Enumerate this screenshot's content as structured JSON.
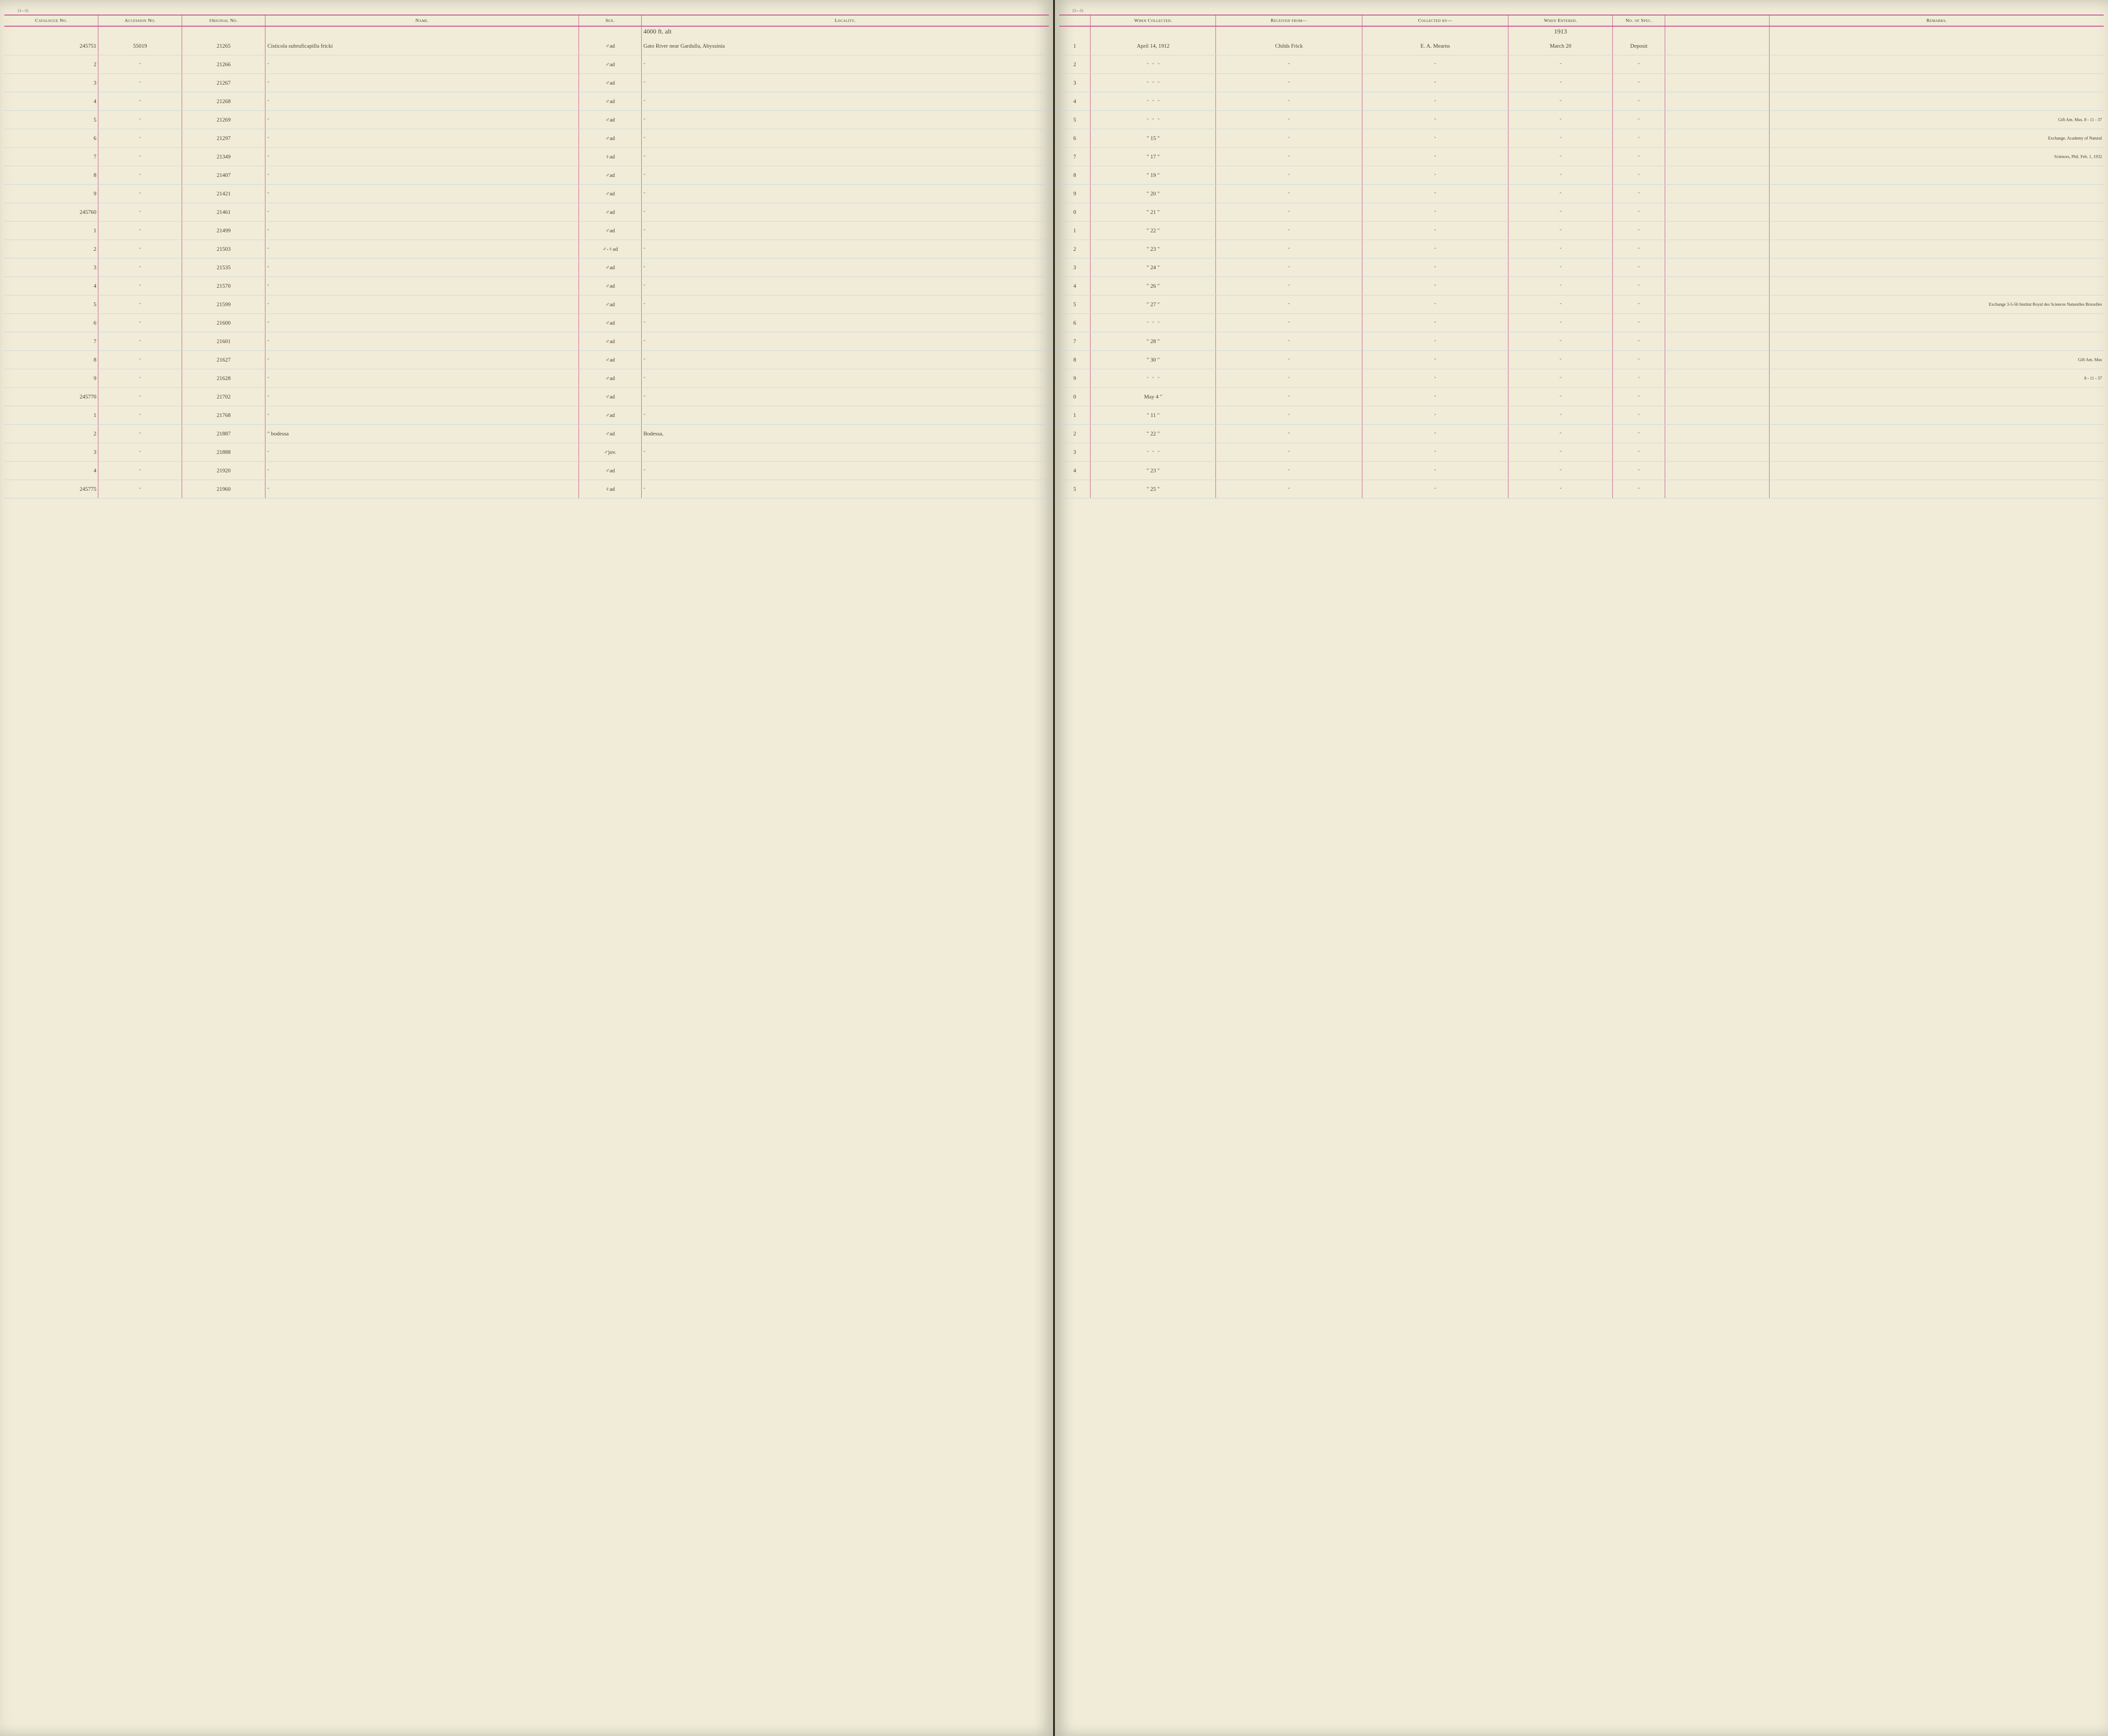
{
  "page_code_left": "13—51",
  "page_code_right": "13—51",
  "year_heading": "1913",
  "headers": {
    "catalogue": "Catalogue No.",
    "accession": "Accession No.",
    "original": "Original No.",
    "name": "Name.",
    "sex": "Sex.",
    "locality": "Locality.",
    "when_collected": "When Collected.",
    "received_from": "Received from—",
    "collected_by": "Collected by—",
    "when_entered": "When Entered.",
    "no_spec": "No. of Spec.",
    "remarks": "Remarks."
  },
  "locality_note": "4000 ft. alt",
  "rows": [
    {
      "cat": "245751",
      "acc": "55019",
      "orig": "21265",
      "name": "Cisticola subruficapilla fricki",
      "sex": "♂ad",
      "loc": "Gato River near Gardulla, Abyssinia",
      "idx": "1",
      "when": "April 14, 1912",
      "recv": "Childs Frick",
      "coll": "E. A. Mearns",
      "ent": "March 20",
      "spec": "Deposit",
      "rem": ""
    },
    {
      "cat": "2",
      "acc": "\"",
      "orig": "21266",
      "name": "\"",
      "sex": "♂ad",
      "loc": "\"",
      "idx": "2",
      "when": "\" \" \"",
      "recv": "\"",
      "coll": "\"",
      "ent": "\"",
      "spec": "\"",
      "rem": ""
    },
    {
      "cat": "3",
      "acc": "\"",
      "orig": "21267",
      "name": "\"",
      "sex": "♂ad",
      "loc": "\"",
      "idx": "3",
      "when": "\" \" \"",
      "recv": "\"",
      "coll": "\"",
      "ent": "\"",
      "spec": "\"",
      "rem": ""
    },
    {
      "cat": "4",
      "acc": "\"",
      "orig": "21268",
      "name": "\"",
      "sex": "♂ad",
      "loc": "\"",
      "idx": "4",
      "when": "\" \" \"",
      "recv": "\"",
      "coll": "\"",
      "ent": "\"",
      "spec": "\"",
      "rem": ""
    },
    {
      "cat": "5",
      "acc": "\"",
      "orig": "21269",
      "name": "\"",
      "sex": "♂ad",
      "loc": "\"",
      "idx": "5",
      "when": "\" \" \"",
      "recv": "\"",
      "coll": "\"",
      "ent": "\"",
      "spec": "\"",
      "rem": "Gift Am. Mus. 8 - 11 - 37"
    },
    {
      "cat": "6",
      "acc": "\"",
      "orig": "21297",
      "name": "\"",
      "sex": "♂ad",
      "loc": "\"",
      "idx": "6",
      "when": "\" 15 \"",
      "recv": "\"",
      "coll": "\"",
      "ent": "\"",
      "spec": "\"",
      "rem": "Exchange. Academy of Natural"
    },
    {
      "cat": "7",
      "acc": "\"",
      "orig": "21349",
      "name": "\"",
      "sex": "♀ad",
      "loc": "\"",
      "idx": "7",
      "when": "\" 17 \"",
      "recv": "\"",
      "coll": "\"",
      "ent": "\"",
      "spec": "\"",
      "rem": "Sciences, Phil. Feb. 1, 1932"
    },
    {
      "cat": "8",
      "acc": "\"",
      "orig": "21407",
      "name": "\"",
      "sex": "♂ad",
      "loc": "\"",
      "idx": "8",
      "when": "\" 19 \"",
      "recv": "\"",
      "coll": "\"",
      "ent": "\"",
      "spec": "\"",
      "rem": ""
    },
    {
      "cat": "9",
      "acc": "\"",
      "orig": "21421",
      "name": "\"",
      "sex": "♂ad",
      "loc": "\"",
      "idx": "9",
      "when": "\" 20 \"",
      "recv": "\"",
      "coll": "\"",
      "ent": "\"",
      "spec": "\"",
      "rem": ""
    },
    {
      "cat": "245760",
      "acc": "\"",
      "orig": "21461",
      "name": "\"",
      "sex": "♂ad",
      "loc": "\"",
      "idx": "0",
      "when": "\" 21 \"",
      "recv": "\"",
      "coll": "\"",
      "ent": "\"",
      "spec": "\"",
      "rem": ""
    },
    {
      "cat": "1",
      "acc": "\"",
      "orig": "21499",
      "name": "\"",
      "sex": "♂ad",
      "loc": "\"",
      "idx": "1",
      "when": "\" 22 \"",
      "recv": "\"",
      "coll": "\"",
      "ent": "\"",
      "spec": "\"",
      "rem": ""
    },
    {
      "cat": "2",
      "acc": "\"",
      "orig": "21503",
      "name": "\"",
      "sex": "♂-♀ad",
      "loc": "\"",
      "idx": "2",
      "when": "\" 23 \"",
      "recv": "\"",
      "coll": "\"",
      "ent": "\"",
      "spec": "\"",
      "rem": ""
    },
    {
      "cat": "3",
      "acc": "\"",
      "orig": "21535",
      "name": "\"",
      "sex": "♂ad",
      "loc": "\"",
      "idx": "3",
      "when": "\" 24 \"",
      "recv": "\"",
      "coll": "\"",
      "ent": "\"",
      "spec": "\"",
      "rem": ""
    },
    {
      "cat": "4",
      "acc": "\"",
      "orig": "21570",
      "name": "\"",
      "sex": "♂ad",
      "loc": "\"",
      "idx": "4",
      "when": "\" 26 \"",
      "recv": "\"",
      "coll": "\"",
      "ent": "\"",
      "spec": "\"",
      "rem": ""
    },
    {
      "cat": "5",
      "acc": "\"",
      "orig": "21599",
      "name": "\"",
      "sex": "♂ad",
      "loc": "\"",
      "idx": "5",
      "when": "\" 27 \"",
      "recv": "\"",
      "coll": "\"",
      "ent": "\"",
      "spec": "\"",
      "rem": "Exchange 3-5-56 Institut Royal des Sciences Naturelles Bruxelles"
    },
    {
      "cat": "6",
      "acc": "\"",
      "orig": "21600",
      "name": "\"",
      "sex": "♂ad",
      "loc": "\"",
      "idx": "6",
      "when": "\" \" \"",
      "recv": "\"",
      "coll": "\"",
      "ent": "\"",
      "spec": "\"",
      "rem": ""
    },
    {
      "cat": "7",
      "acc": "\"",
      "orig": "21601",
      "name": "\"",
      "sex": "♂ad",
      "loc": "\"",
      "idx": "7",
      "when": "\" 28 \"",
      "recv": "\"",
      "coll": "\"",
      "ent": "\"",
      "spec": "\"",
      "rem": ""
    },
    {
      "cat": "8",
      "acc": "\"",
      "orig": "21627",
      "name": "\"",
      "sex": "♂ad",
      "loc": "\"",
      "idx": "8",
      "when": "\" 30 \"",
      "recv": "\"",
      "coll": "\"",
      "ent": "\"",
      "spec": "\"",
      "rem": "Gift Am. Mus"
    },
    {
      "cat": "9",
      "acc": "\"",
      "orig": "21628",
      "name": "\"",
      "sex": "♂ad",
      "loc": "\"",
      "idx": "9",
      "when": "\" \" \"",
      "recv": "\"",
      "coll": "\"",
      "ent": "\"",
      "spec": "\"",
      "rem": "8 - 11 - 37"
    },
    {
      "cat": "245770",
      "acc": "\"",
      "orig": "21702",
      "name": "\"",
      "sex": "♂ad",
      "loc": "\"",
      "idx": "0",
      "when": "May 4 \"",
      "recv": "\"",
      "coll": "\"",
      "ent": "\"",
      "spec": "\"",
      "rem": ""
    },
    {
      "cat": "1",
      "acc": "\"",
      "orig": "21768",
      "name": "\"",
      "sex": "♂ad",
      "loc": "\"",
      "idx": "1",
      "when": "\" 11 \"",
      "recv": "\"",
      "coll": "\"",
      "ent": "\"",
      "spec": "\"",
      "rem": ""
    },
    {
      "cat": "2",
      "acc": "\"",
      "orig": "21887",
      "name": "\"  bodessa",
      "sex": "♂ad",
      "loc": "Bodessa,",
      "idx": "2",
      "when": "\" 22 \"",
      "recv": "\"",
      "coll": "\"",
      "ent": "\"",
      "spec": "\"",
      "rem": ""
    },
    {
      "cat": "3",
      "acc": "\"",
      "orig": "21888",
      "name": "\"",
      "sex": "♂juv.",
      "loc": "\"",
      "idx": "3",
      "when": "\" \" \"",
      "recv": "\"",
      "coll": "\"",
      "ent": "\"",
      "spec": "\"",
      "rem": ""
    },
    {
      "cat": "4",
      "acc": "\"",
      "orig": "21920",
      "name": "\"",
      "sex": "♂ad",
      "loc": "\"",
      "idx": "4",
      "when": "\" 23 \"",
      "recv": "\"",
      "coll": "\"",
      "ent": "\"",
      "spec": "\"",
      "rem": ""
    },
    {
      "cat": "245775",
      "acc": "\"",
      "orig": "21960",
      "name": "\"",
      "sex": "♀ad",
      "loc": "\"",
      "idx": "5",
      "when": "\" 25 \"",
      "recv": "\"",
      "coll": "\"",
      "ent": "\"",
      "spec": "\"",
      "rem": ""
    }
  ],
  "colors": {
    "paper": "#f0ecd8",
    "rule_pink": "#c44a8a",
    "rule_blue": "#c9d4de",
    "ink": "#4a4030"
  }
}
